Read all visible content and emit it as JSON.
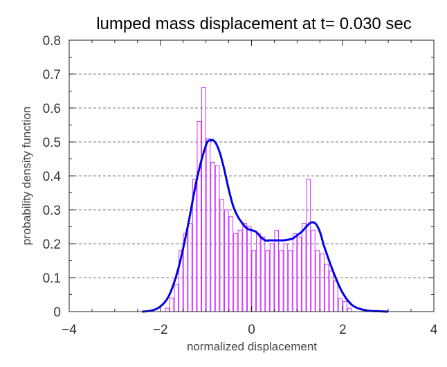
{
  "chart_data": {
    "type": "bar",
    "title": "lumped mass displacement at t= 0.030 sec",
    "xlabel": "normalized displacement",
    "ylabel": "probability density function",
    "xlim": [
      -4,
      4
    ],
    "ylim": [
      0,
      0.8
    ],
    "x_ticks": [
      -4,
      -2,
      0,
      2,
      4
    ],
    "x_tick_labels": [
      "−4",
      "−2",
      "0",
      "2",
      "4"
    ],
    "y_ticks": [
      0,
      0.1,
      0.2,
      0.3,
      0.4,
      0.5,
      0.6,
      0.7,
      0.8
    ],
    "y_tick_labels": [
      "0",
      "0.1",
      "0.2",
      "0.3",
      "0.4",
      "0.5",
      "0.6",
      "0.7",
      "0.8"
    ],
    "grid": "horizontal-dashed",
    "series": [
      {
        "type": "histogram",
        "color": "#cc33ff",
        "bin_width": 0.1,
        "bin_centers": [
          -1.85,
          -1.75,
          -1.65,
          -1.55,
          -1.45,
          -1.35,
          -1.25,
          -1.15,
          -1.05,
          -0.95,
          -0.85,
          -0.75,
          -0.65,
          -0.55,
          -0.45,
          -0.35,
          -0.25,
          -0.15,
          -0.05,
          0.05,
          0.15,
          0.25,
          0.35,
          0.45,
          0.55,
          0.65,
          0.75,
          0.85,
          0.95,
          1.05,
          1.15,
          1.25,
          1.35,
          1.45,
          1.55,
          1.65,
          1.75,
          1.85,
          1.95,
          2.05,
          2.15
        ],
        "values": [
          0.01,
          0.04,
          0.08,
          0.18,
          0.23,
          0.26,
          0.39,
          0.56,
          0.66,
          0.51,
          0.44,
          0.43,
          0.33,
          0.3,
          0.28,
          0.23,
          0.24,
          0.26,
          0.25,
          0.18,
          0.23,
          0.22,
          0.18,
          0.2,
          0.24,
          0.18,
          0.2,
          0.18,
          0.23,
          0.22,
          0.26,
          0.39,
          0.24,
          0.18,
          0.17,
          0.14,
          0.12,
          0.09,
          0.04,
          0.03,
          0.01
        ]
      },
      {
        "type": "line",
        "color": "#0000e6",
        "x": [
          -2.4,
          -2.2,
          -2.0,
          -1.8,
          -1.6,
          -1.4,
          -1.2,
          -1.0,
          -0.9,
          -0.8,
          -0.7,
          -0.6,
          -0.5,
          -0.4,
          -0.3,
          -0.2,
          -0.1,
          0.0,
          0.1,
          0.2,
          0.3,
          0.4,
          0.5,
          0.6,
          0.7,
          0.8,
          0.9,
          1.0,
          1.1,
          1.2,
          1.3,
          1.4,
          1.5,
          1.6,
          1.8,
          2.0,
          2.2,
          2.4,
          2.6,
          2.8,
          3.0
        ],
        "y": [
          0.0,
          0.003,
          0.015,
          0.05,
          0.13,
          0.25,
          0.39,
          0.49,
          0.505,
          0.5,
          0.47,
          0.42,
          0.36,
          0.31,
          0.28,
          0.26,
          0.245,
          0.24,
          0.235,
          0.22,
          0.21,
          0.21,
          0.21,
          0.21,
          0.21,
          0.212,
          0.215,
          0.225,
          0.235,
          0.25,
          0.262,
          0.26,
          0.235,
          0.19,
          0.115,
          0.055,
          0.02,
          0.007,
          0.002,
          0.001,
          0.0
        ]
      }
    ]
  }
}
